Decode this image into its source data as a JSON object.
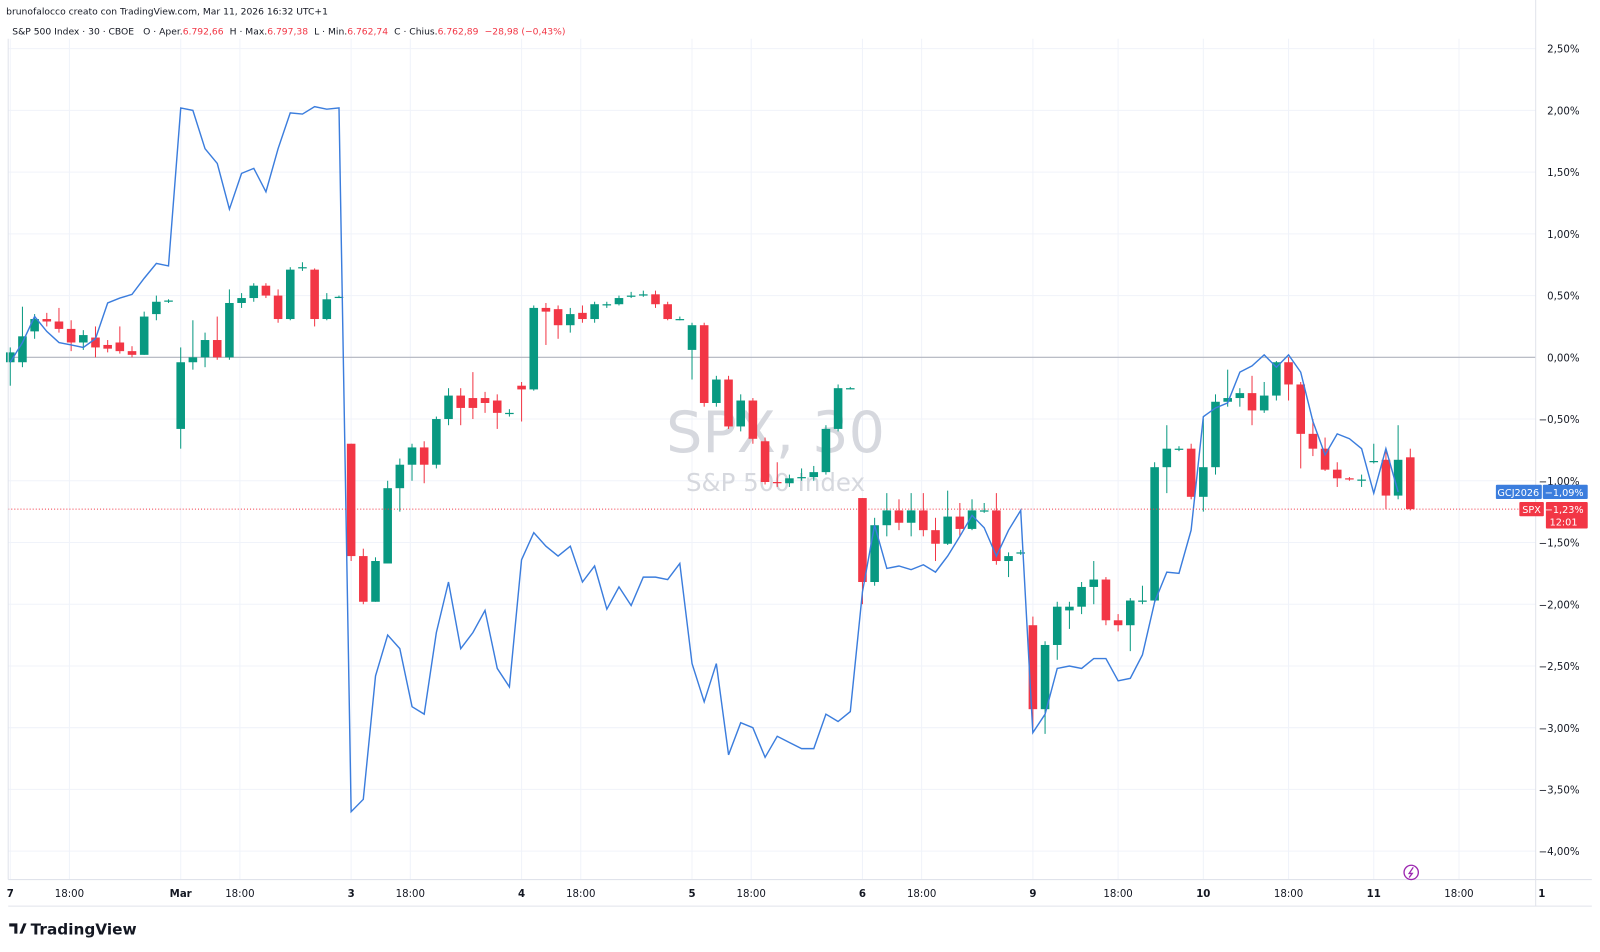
{
  "header": "brunofalocco creato con TradingView.com, Mar 11, 2026 16:32 UTC+1",
  "legend": {
    "symbol": "S&P 500 Index · 30 · CBOE",
    "fields": [
      {
        "label": "O · Aper.",
        "value": "6.792,66"
      },
      {
        "label": "H · Max.",
        "value": "6.797,38"
      },
      {
        "label": "L · Min.",
        "value": "6.762,74"
      },
      {
        "label": "C · Chius.",
        "value": "6.762,89"
      }
    ],
    "change": "−28,98 (−0,43%)"
  },
  "watermark": {
    "title": "SPX, 30",
    "subtitle": "S&P 500 Index"
  },
  "badges": [
    {
      "name": "GCJ2026",
      "label": "−1,09%"
    },
    {
      "name": "SPX",
      "label": "−1,23%",
      "countdown": "12:01"
    }
  ],
  "footer": "TradingView",
  "chart_data": {
    "type": "candlestick",
    "up_color": "#089981",
    "down_color": "#f23645",
    "candles": [
      [
        -0.04,
        0.08,
        -0.23,
        0.04
      ],
      [
        -0.04,
        0.41,
        -0.08,
        0.17
      ],
      [
        0.21,
        0.35,
        0.15,
        0.31
      ],
      [
        0.31,
        0.36,
        0.25,
        0.29
      ],
      [
        0.29,
        0.4,
        0.2,
        0.23
      ],
      [
        0.23,
        0.3,
        0.05,
        0.12
      ],
      [
        0.12,
        0.22,
        0.06,
        0.18
      ],
      [
        0.16,
        0.25,
        0.0,
        0.08
      ],
      [
        0.1,
        0.14,
        0.04,
        0.07
      ],
      [
        0.12,
        0.25,
        0.03,
        0.05
      ],
      [
        0.05,
        0.09,
        0.0,
        0.02
      ],
      [
        0.02,
        0.37,
        0.02,
        0.33
      ],
      [
        0.35,
        0.5,
        0.3,
        0.45
      ],
      [
        0.46,
        0.47,
        0.44,
        0.46
      ],
      [
        -0.58,
        0.08,
        -0.74,
        -0.04
      ],
      [
        -0.04,
        0.3,
        -0.1,
        0.0
      ],
      [
        0.0,
        0.2,
        -0.08,
        0.14
      ],
      [
        0.14,
        0.33,
        -0.02,
        0.0
      ],
      [
        0.0,
        0.55,
        -0.02,
        0.44
      ],
      [
        0.44,
        0.52,
        0.4,
        0.48
      ],
      [
        0.48,
        0.6,
        0.45,
        0.58
      ],
      [
        0.58,
        0.6,
        0.48,
        0.5
      ],
      [
        0.5,
        0.55,
        0.28,
        0.31
      ],
      [
        0.31,
        0.73,
        0.3,
        0.71
      ],
      [
        0.73,
        0.77,
        0.7,
        0.73
      ],
      [
        0.71,
        0.72,
        0.25,
        0.31
      ],
      [
        0.31,
        0.52,
        0.3,
        0.47
      ],
      [
        0.49,
        0.5,
        0.48,
        0.49
      ],
      [
        -0.7,
        -0.7,
        -1.65,
        -1.61
      ],
      [
        -1.61,
        -1.55,
        -2.0,
        -1.98
      ],
      [
        -1.98,
        -1.62,
        -1.98,
        -1.65
      ],
      [
        -1.67,
        -1.0,
        -1.67,
        -1.06
      ],
      [
        -1.06,
        -0.82,
        -1.25,
        -0.87
      ],
      [
        -0.87,
        -0.7,
        -1.0,
        -0.73
      ],
      [
        -0.73,
        -0.68,
        -1.02,
        -0.87
      ],
      [
        -0.87,
        -0.48,
        -0.9,
        -0.5
      ],
      [
        -0.5,
        -0.25,
        -0.55,
        -0.31
      ],
      [
        -0.31,
        -0.25,
        -0.55,
        -0.41
      ],
      [
        -0.33,
        -0.12,
        -0.5,
        -0.41
      ],
      [
        -0.33,
        -0.28,
        -0.45,
        -0.37
      ],
      [
        -0.35,
        -0.3,
        -0.58,
        -0.45
      ],
      [
        -0.45,
        -0.42,
        -0.48,
        -0.45
      ],
      [
        -0.23,
        -0.2,
        -0.52,
        -0.26
      ],
      [
        -0.26,
        0.42,
        -0.27,
        0.4
      ],
      [
        0.4,
        0.44,
        0.1,
        0.37
      ],
      [
        0.39,
        0.42,
        0.15,
        0.26
      ],
      [
        0.26,
        0.4,
        0.2,
        0.35
      ],
      [
        0.36,
        0.42,
        0.28,
        0.31
      ],
      [
        0.31,
        0.45,
        0.28,
        0.43
      ],
      [
        0.43,
        0.45,
        0.4,
        0.43
      ],
      [
        0.43,
        0.5,
        0.42,
        0.48
      ],
      [
        0.5,
        0.53,
        0.48,
        0.5
      ],
      [
        0.5,
        0.54,
        0.49,
        0.51
      ],
      [
        0.51,
        0.54,
        0.4,
        0.43
      ],
      [
        0.43,
        0.45,
        0.3,
        0.31
      ],
      [
        0.31,
        0.33,
        0.3,
        0.31
      ],
      [
        0.06,
        0.28,
        -0.18,
        0.26
      ],
      [
        0.26,
        0.28,
        -0.4,
        -0.37
      ],
      [
        -0.37,
        -0.15,
        -0.4,
        -0.18
      ],
      [
        -0.18,
        -0.15,
        -0.58,
        -0.56
      ],
      [
        -0.56,
        -0.3,
        -0.6,
        -0.35
      ],
      [
        -0.35,
        -0.33,
        -0.7,
        -0.66
      ],
      [
        -0.68,
        -0.65,
        -1.03,
        -1.01
      ],
      [
        -1.01,
        -0.85,
        -1.05,
        -1.02
      ],
      [
        -1.02,
        -0.95,
        -1.05,
        -0.98
      ],
      [
        -0.97,
        -0.9,
        -1.0,
        -0.97
      ],
      [
        -0.97,
        -0.88,
        -1.0,
        -0.93
      ],
      [
        -0.93,
        -0.55,
        -0.95,
        -0.58
      ],
      [
        -0.58,
        -0.22,
        -0.6,
        -0.25
      ],
      [
        -0.25,
        -0.24,
        -0.26,
        -0.25
      ],
      [
        -1.14,
        -1.14,
        -2.0,
        -1.82
      ],
      [
        -1.82,
        -1.3,
        -1.85,
        -1.36
      ],
      [
        -1.36,
        -1.1,
        -1.45,
        -1.24
      ],
      [
        -1.24,
        -1.15,
        -1.4,
        -1.34
      ],
      [
        -1.34,
        -1.1,
        -1.45,
        -1.24
      ],
      [
        -1.24,
        -1.1,
        -1.45,
        -1.4
      ],
      [
        -1.4,
        -1.3,
        -1.65,
        -1.51
      ],
      [
        -1.51,
        -1.08,
        -1.52,
        -1.29
      ],
      [
        -1.29,
        -1.18,
        -1.45,
        -1.39
      ],
      [
        -1.39,
        -1.15,
        -1.4,
        -1.24
      ],
      [
        -1.24,
        -1.18,
        -1.26,
        -1.24
      ],
      [
        -1.24,
        -1.1,
        -1.68,
        -1.65
      ],
      [
        -1.65,
        -1.58,
        -1.78,
        -1.61
      ],
      [
        -1.58,
        -1.56,
        -1.6,
        -1.58
      ],
      [
        -2.17,
        -2.1,
        -3.0,
        -2.85
      ],
      [
        -2.85,
        -2.3,
        -3.05,
        -2.33
      ],
      [
        -2.33,
        -1.98,
        -2.45,
        -2.02
      ],
      [
        -2.05,
        -1.98,
        -2.2,
        -2.02
      ],
      [
        -2.02,
        -1.82,
        -2.08,
        -1.86
      ],
      [
        -1.86,
        -1.65,
        -2.0,
        -1.8
      ],
      [
        -1.8,
        -1.78,
        -2.17,
        -2.13
      ],
      [
        -2.13,
        -2.08,
        -2.22,
        -2.17
      ],
      [
        -2.17,
        -1.95,
        -2.38,
        -1.97
      ],
      [
        -1.98,
        -1.85,
        -2.0,
        -1.97
      ],
      [
        -1.97,
        -0.85,
        -1.98,
        -0.89
      ],
      [
        -0.89,
        -0.55,
        -1.1,
        -0.74
      ],
      [
        -0.74,
        -0.72,
        -0.76,
        -0.74
      ],
      [
        -0.74,
        -0.7,
        -1.15,
        -1.13
      ],
      [
        -1.13,
        -0.5,
        -1.25,
        -0.89
      ],
      [
        -0.89,
        -0.3,
        -0.95,
        -0.36
      ],
      [
        -0.36,
        -0.1,
        -0.4,
        -0.33
      ],
      [
        -0.33,
        -0.25,
        -0.4,
        -0.29
      ],
      [
        -0.29,
        -0.15,
        -0.55,
        -0.43
      ],
      [
        -0.43,
        -0.2,
        -0.45,
        -0.31
      ],
      [
        -0.31,
        -0.03,
        -0.35,
        -0.04
      ],
      [
        -0.04,
        0.0,
        -0.35,
        -0.22
      ],
      [
        -0.22,
        -0.2,
        -0.9,
        -0.62
      ],
      [
        -0.62,
        -0.5,
        -0.8,
        -0.74
      ],
      [
        -0.74,
        -0.65,
        -0.92,
        -0.91
      ],
      [
        -0.91,
        -0.85,
        -1.05,
        -0.98
      ],
      [
        -0.98,
        -0.97,
        -1.0,
        -0.99
      ],
      [
        -0.99,
        -0.95,
        -1.05,
        -0.99
      ],
      [
        -0.84,
        -0.7,
        -0.86,
        -0.84
      ],
      [
        -0.83,
        -0.75,
        -1.23,
        -1.12
      ],
      [
        -1.12,
        -0.55,
        -1.15,
        -0.83
      ],
      [
        -0.81,
        -0.74,
        -1.24,
        -1.23
      ]
    ],
    "series": [
      {
        "name": "GCJ2026",
        "color": "#3b7ddd",
        "values": [
          -0.04,
          0.12,
          0.33,
          0.21,
          0.12,
          0.1,
          0.08,
          0.15,
          0.44,
          0.48,
          0.51,
          0.64,
          0.76,
          0.74,
          2.02,
          2.0,
          1.69,
          1.57,
          1.2,
          1.49,
          1.53,
          1.34,
          1.69,
          1.98,
          1.97,
          2.03,
          2.01,
          2.02,
          -3.68,
          -3.58,
          -2.58,
          -2.25,
          -2.36,
          -2.83,
          -2.89,
          -2.23,
          -1.82,
          -2.36,
          -2.23,
          -2.05,
          -2.52,
          -2.67,
          -1.64,
          -1.42,
          -1.53,
          -1.61,
          -1.53,
          -1.82,
          -1.69,
          -2.04,
          -1.86,
          -2.01,
          -1.78,
          -1.78,
          -1.8,
          -1.67,
          -2.48,
          -2.79,
          -2.48,
          -3.22,
          -2.96,
          -3.0,
          -3.24,
          -3.07,
          -3.12,
          -3.17,
          -3.17,
          -2.89,
          -2.95,
          -2.87,
          -1.9,
          -1.36,
          -1.71,
          -1.69,
          -1.72,
          -1.68,
          -1.74,
          -1.61,
          -1.45,
          -1.28,
          -1.38,
          -1.61,
          -1.4,
          -1.24,
          -3.04,
          -2.89,
          -2.52,
          -2.5,
          -2.52,
          -2.44,
          -2.44,
          -2.62,
          -2.6,
          -2.41,
          -1.98,
          -1.74,
          -1.75,
          -1.4,
          -0.48,
          -0.41,
          -0.37,
          -0.12,
          -0.07,
          0.02,
          -0.08,
          0.02,
          -0.12,
          -0.52,
          -0.79,
          -0.62,
          -0.66,
          -0.74,
          -1.1,
          -0.74,
          -1.09,
          null
        ]
      }
    ],
    "xlim": [
      -0.17,
      125.3
    ],
    "xticks": [
      {
        "value": 0,
        "label": "7"
      },
      {
        "value": 4.86,
        "label": "18:00"
      },
      {
        "value": 14,
        "label": "Mar"
      },
      {
        "value": 18.86,
        "label": "18:00"
      },
      {
        "value": 28,
        "label": "3"
      },
      {
        "value": 32.86,
        "label": "18:00"
      },
      {
        "value": 42,
        "label": "4"
      },
      {
        "value": 46.86,
        "label": "18:00"
      },
      {
        "value": 56,
        "label": "5"
      },
      {
        "value": 60.86,
        "label": "18:00"
      },
      {
        "value": 70,
        "label": "6"
      },
      {
        "value": 74.86,
        "label": "18:00"
      },
      {
        "value": 84,
        "label": "9"
      },
      {
        "value": 91,
        "label": "18:00"
      },
      {
        "value": 98,
        "label": "10"
      },
      {
        "value": 105,
        "label": "18:00"
      },
      {
        "value": 112,
        "label": "11"
      },
      {
        "value": 119,
        "label": "18:00"
      },
      {
        "value": 125.8,
        "label": "1"
      }
    ],
    "ylim": [
      -4.23,
      2.58
    ],
    "yticks": [
      {
        "value": 2.5,
        "label": "2,50%"
      },
      {
        "value": 2,
        "label": "2,00%"
      },
      {
        "value": 1.5,
        "label": "1,50%"
      },
      {
        "value": 1,
        "label": "1,00%"
      },
      {
        "value": 0.5,
        "label": "0,50%"
      },
      {
        "value": 0,
        "label": "0,00%"
      },
      {
        "value": -0.5,
        "label": "−0,50%"
      },
      {
        "value": -1,
        "label": "−1,00%"
      },
      {
        "value": -1.5,
        "label": "−1,50%"
      },
      {
        "value": -2,
        "label": "−2,00%"
      },
      {
        "value": -2.5,
        "label": "−2,50%"
      },
      {
        "value": -3,
        "label": "−3,00%"
      },
      {
        "value": -3.5,
        "label": "−3,50%"
      },
      {
        "value": -4,
        "label": "−4,00%"
      }
    ],
    "grid": true
  }
}
